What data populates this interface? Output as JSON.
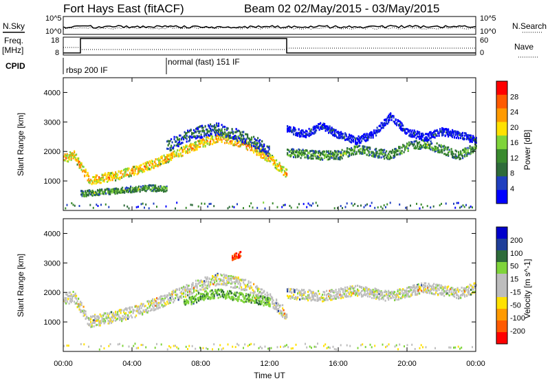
{
  "header": {
    "station": "Fort Hays East (fitACF)",
    "beam": "Beam 02 02/May/2015 - 03/May/2015"
  },
  "top_panels": {
    "nsky_label": "N.Sky",
    "nsearch_label": "N.Search",
    "freq_label": "Freq.",
    "freq_unit": "[MHz]",
    "nave_label": "Nave",
    "cpid_label": "CPID",
    "noise_ticks_left": [
      "10^5",
      "10^0"
    ],
    "noise_ticks_right": [
      "10^5",
      "10^0"
    ],
    "freq_ticks": [
      "18",
      "8"
    ],
    "nave_ticks": [
      "60",
      "0"
    ],
    "cpid_modes": [
      "rbsp 200 IF",
      "normal (fast) 151 IF"
    ]
  },
  "colors": {
    "power_scale": [
      "#0000ff",
      "#1f3fbf",
      "#2e6b3a",
      "#3a8a2e",
      "#7fd43a",
      "#ffe100",
      "#ff9a00",
      "#ff5a00",
      "#ff0000"
    ],
    "velocity_scale": [
      "#0000cc",
      "#1f3f99",
      "#2e6b3a",
      "#7fd43a",
      "#bdbdbd",
      "#bdbdbd",
      "#ffe100",
      "#ff9a00",
      "#ff5a00",
      "#ff0000"
    ],
    "ground_scatter": "#bdbdbd"
  },
  "chart_data": [
    {
      "type": "heatmap",
      "panel": "power",
      "ylabel": "Slant Range [km]",
      "ylim": [
        0,
        4500
      ],
      "yticks": [
        "1000",
        "2000",
        "3000",
        "4000"
      ],
      "xlabel": "Time UT",
      "xticks": [
        "00:00",
        "04:00",
        "08:00",
        "12:00",
        "16:00",
        "20:00",
        "00:00"
      ],
      "colorbar_label": "Power [dB]",
      "colorbar_ticks": [
        "4",
        "8",
        "12",
        "16",
        "20",
        "24",
        "28"
      ],
      "scatter_bands": [
        {
          "t": [
            0.0,
            0.6,
            1.5,
            3.0,
            4.5,
            6.0,
            7.5,
            9.0,
            10.5,
            12.0,
            13.0
          ],
          "range": [
            1800,
            1900,
            1050,
            1200,
            1450,
            1800,
            2200,
            2500,
            2300,
            1800,
            1250
          ],
          "width": 300,
          "level": 22
        },
        {
          "t": [
            6.0,
            7.0,
            8.0,
            9.0,
            10.0,
            11.0,
            12.0
          ],
          "range": [
            2200,
            2500,
            2700,
            2800,
            2600,
            2400,
            2000
          ],
          "width": 400,
          "level": 10
        },
        {
          "t": [
            13.0,
            14.0,
            15.0,
            16.0,
            17.0,
            18.0,
            19.0,
            20.0,
            21.0,
            22.0,
            23.0,
            24.0
          ],
          "range": [
            2000,
            1950,
            1900,
            1900,
            2100,
            2000,
            1900,
            2200,
            2300,
            2100,
            1900,
            2200
          ],
          "width": 300,
          "level": 14
        },
        {
          "t": [
            13.0,
            14.0,
            15.0,
            16.0,
            17.0,
            18.0,
            19.0,
            20.0,
            21.0,
            22.0,
            23.0,
            24.0
          ],
          "range": [
            2800,
            2600,
            2900,
            2600,
            2400,
            2600,
            3200,
            2700,
            2500,
            2700,
            2600,
            2400
          ],
          "width": 250,
          "level": 6
        },
        {
          "t": [
            1.0,
            2.0,
            3.0,
            4.0,
            5.0,
            6.0
          ],
          "range": [
            600,
            650,
            700,
            750,
            800,
            750
          ],
          "width": 200,
          "level": 14
        }
      ]
    },
    {
      "type": "heatmap",
      "panel": "velocity",
      "ylabel": "Slant Range [km]",
      "ylim": [
        0,
        4500
      ],
      "yticks": [
        "1000",
        "2000",
        "3000",
        "4000"
      ],
      "xlabel": "Time UT",
      "xticks": [
        "00:00",
        "04:00",
        "08:00",
        "12:00",
        "16:00",
        "20:00",
        "00:00"
      ],
      "colorbar_label": "Velocity [m s^-1]",
      "colorbar_ticks": [
        "200",
        "100",
        "50",
        "15",
        "-15",
        "-50",
        "-100",
        "-200"
      ],
      "scatter_bands": [
        {
          "t": [
            0.0,
            0.6,
            1.5,
            3.0,
            4.5,
            6.0,
            7.5,
            9.0,
            10.5,
            12.0,
            13.0
          ],
          "range": [
            1800,
            1900,
            1050,
            1200,
            1450,
            1800,
            2200,
            2500,
            2300,
            1800,
            1250
          ],
          "width": 400,
          "velocity": 0
        },
        {
          "t": [
            7.0,
            8.0,
            9.0,
            10.0,
            11.0,
            12.0
          ],
          "range": [
            1700,
            1900,
            2000,
            1900,
            1800,
            1700
          ],
          "width": 300,
          "velocity": 40
        },
        {
          "t": [
            13.0,
            15.0,
            17.0,
            19.0,
            21.0,
            23.0,
            24.0
          ],
          "range": [
            2000,
            1900,
            2100,
            1900,
            2200,
            2000,
            2200
          ],
          "width": 350,
          "velocity": 0
        },
        {
          "t": [
            9.8,
            10.3
          ],
          "range": [
            3200,
            3350
          ],
          "width": 200,
          "velocity": -200
        }
      ]
    }
  ]
}
